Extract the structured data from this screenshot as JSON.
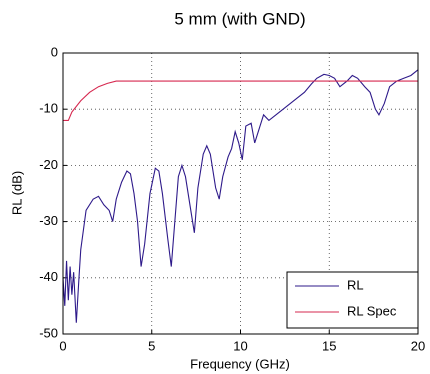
{
  "chart_data": {
    "type": "line",
    "title": "5 mm (with GND)",
    "x_label": "Frequency (GHz)",
    "y_label": "RL (dB)",
    "xlim": [
      0,
      20
    ],
    "ylim": [
      -50,
      0
    ],
    "xticks": [
      0,
      5,
      10,
      15,
      20
    ],
    "yticks": [
      -50,
      -40,
      -30,
      -20,
      -10,
      0
    ],
    "grid": true,
    "legend": "lower right",
    "series": [
      {
        "name": "RL",
        "color": "#2e1a8a",
        "x": [
          0,
          0.1,
          0.2,
          0.3,
          0.4,
          0.5,
          0.6,
          0.75,
          0.9,
          1.0,
          1.3,
          1.7,
          2.0,
          2.3,
          2.6,
          2.8,
          3.0,
          3.3,
          3.6,
          3.8,
          4.0,
          4.2,
          4.4,
          4.6,
          4.9,
          5.2,
          5.4,
          5.6,
          5.9,
          6.1,
          6.3,
          6.5,
          6.7,
          6.9,
          7.2,
          7.4,
          7.6,
          7.9,
          8.1,
          8.3,
          8.6,
          8.8,
          9.0,
          9.3,
          9.5,
          9.7,
          9.9,
          10.1,
          10.3,
          10.6,
          10.8,
          11.0,
          11.3,
          11.6,
          12.0,
          12.4,
          12.8,
          13.2,
          13.6,
          14.0,
          14.3,
          14.7,
          15.0,
          15.3,
          15.6,
          16.0,
          16.3,
          16.6,
          17.0,
          17.3,
          17.6,
          17.8,
          18.1,
          18.4,
          18.8,
          19.2,
          19.6,
          20
        ],
        "values": [
          -40,
          -45,
          -37,
          -44,
          -38,
          -43,
          -39,
          -48,
          -40,
          -35,
          -28,
          -26,
          -25.5,
          -27,
          -28,
          -30,
          -26,
          -23,
          -21,
          -21.5,
          -25,
          -30,
          -38,
          -34,
          -25,
          -20.5,
          -21,
          -25,
          -33,
          -38,
          -30,
          -22,
          -20,
          -22,
          -28,
          -32,
          -24,
          -18,
          -16.5,
          -18,
          -24,
          -26,
          -22,
          -18.5,
          -17,
          -14,
          -16,
          -19,
          -13,
          -12.5,
          -16,
          -14,
          -11,
          -12,
          -11,
          -10,
          -9,
          -8,
          -7,
          -5.5,
          -4.5,
          -3.8,
          -4,
          -4.5,
          -6,
          -5,
          -4,
          -4.5,
          -6,
          -7,
          -10,
          -11,
          -9,
          -6,
          -5,
          -4.5,
          -4,
          -3
        ]
      },
      {
        "name": "RL Spec",
        "color": "#d6284f",
        "x": [
          0,
          0.3,
          0.5,
          1.0,
          1.5,
          2.0,
          2.5,
          3.0,
          20
        ],
        "values": [
          -12,
          -12,
          -10.5,
          -8.5,
          -7,
          -6,
          -5.4,
          -5,
          -5
        ]
      }
    ]
  }
}
